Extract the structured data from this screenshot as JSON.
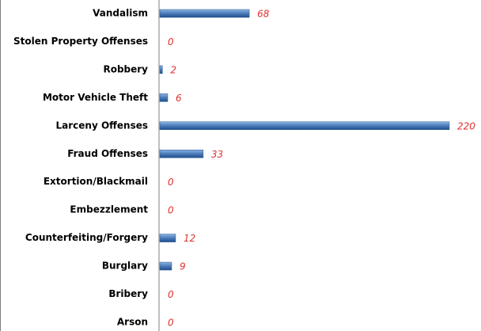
{
  "chart_data": {
    "type": "bar",
    "orientation": "horizontal",
    "categories": [
      "Vandalism",
      "Stolen Property Offenses",
      "Robbery",
      "Motor Vehicle Theft",
      "Larceny Offenses",
      "Fraud Offenses",
      "Extortion/Blackmail",
      "Embezzlement",
      "Counterfeiting/Forgery",
      "Burglary",
      "Bribery",
      "Arson"
    ],
    "values": [
      68,
      0,
      2,
      6,
      220,
      33,
      0,
      0,
      12,
      9,
      0,
      0
    ],
    "color": "#4f81bd"
  }
}
